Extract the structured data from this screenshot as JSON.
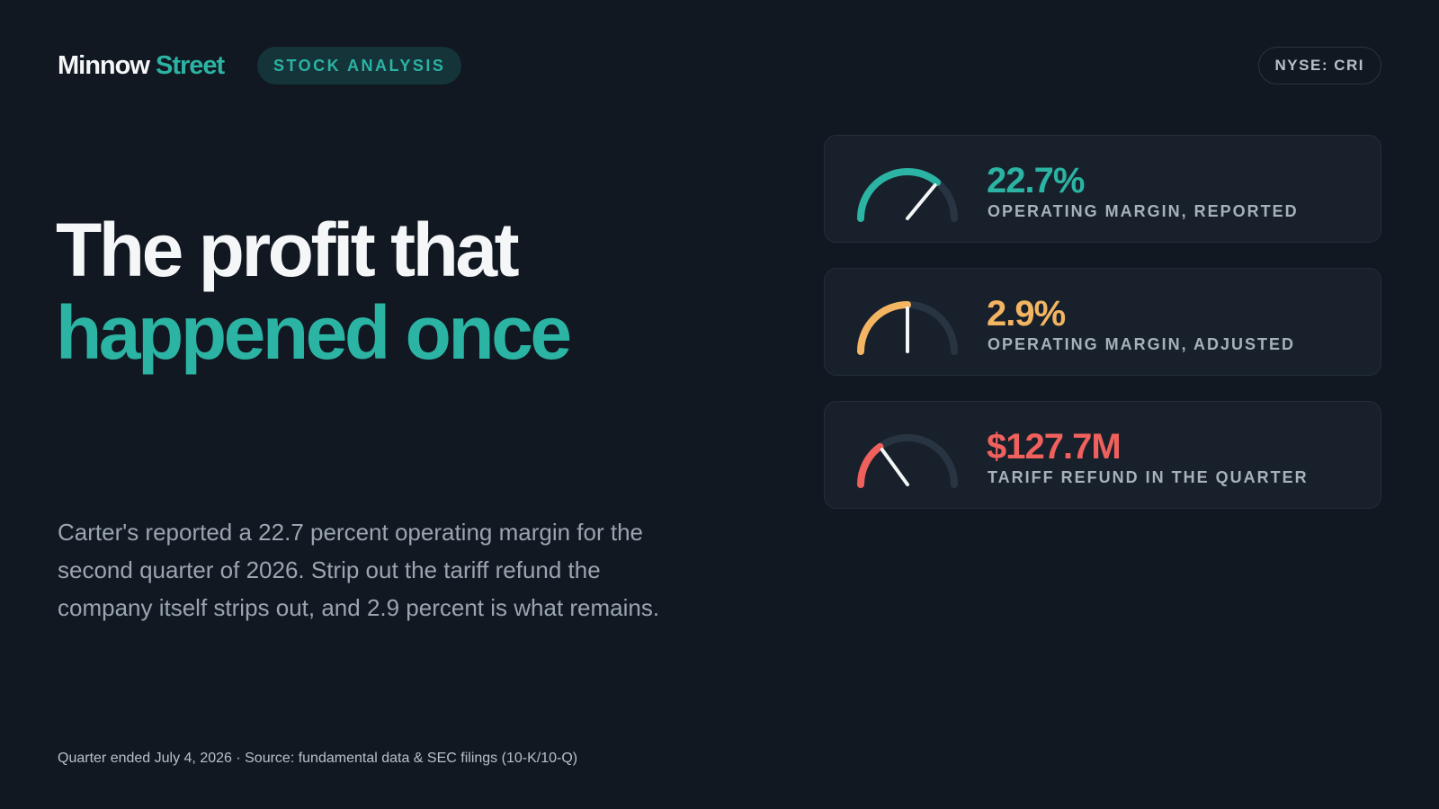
{
  "brand": {
    "part1": "Minnow",
    "part2": "Street"
  },
  "tag": "STOCK ANALYSIS",
  "ticker": "NYSE: CRI",
  "headline": {
    "line1": "The profit that",
    "line2": "happened once"
  },
  "body": "Carter's reported a 22.7 percent operating margin for the second quarter of 2026. Strip out the tariff refund the company itself strips out, and 2.9 percent is what remains.",
  "footer": "Quarter ended July 4, 2026 · Source: fundamental data & SEC filings (10-K/10-Q)",
  "colors": {
    "accent": "#2bb3a3",
    "amber": "#f3b562",
    "red": "#f0605d",
    "background": "#111821",
    "gauge_track": "#283441"
  },
  "metrics": [
    {
      "value": "22.7%",
      "label": "OPERATING MARGIN, REPORTED",
      "gauge_level": 0.72,
      "color": "#2bb3a3"
    },
    {
      "value": "2.9%",
      "label": "OPERATING MARGIN, ADJUSTED",
      "gauge_level": 0.5,
      "color": "#f3b562"
    },
    {
      "value": "$127.7M",
      "label": "TARIFF REFUND IN THE QUARTER",
      "gauge_level": 0.3,
      "color": "#f0605d"
    }
  ]
}
